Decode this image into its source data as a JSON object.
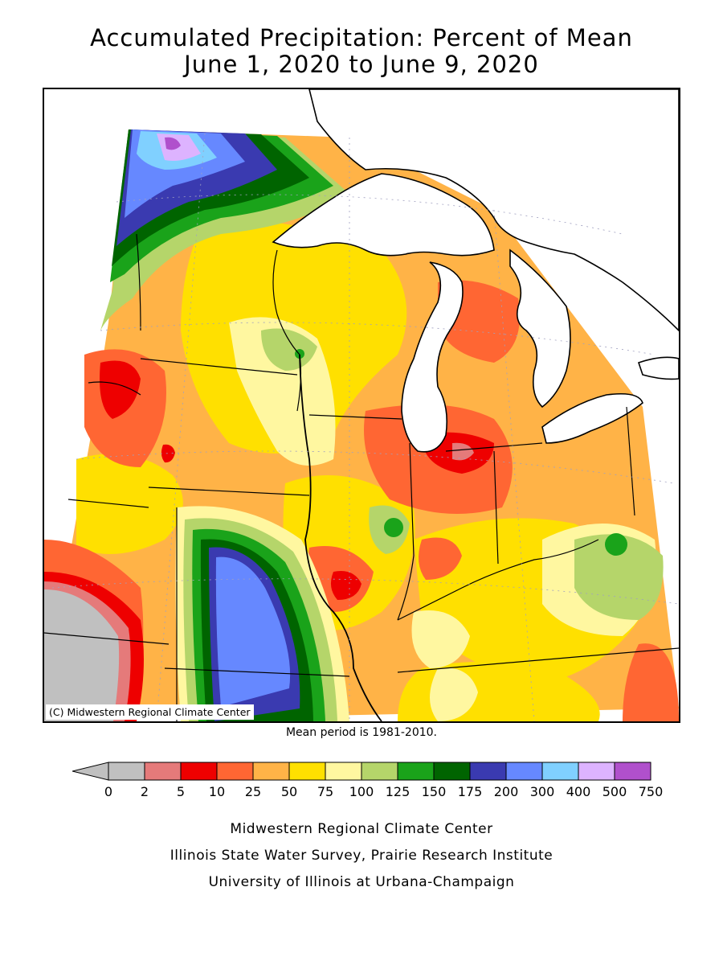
{
  "title": {
    "line1": "Accumulated Precipitation: Percent of Mean",
    "line2": "June 1, 2020 to June 9, 2020"
  },
  "map": {
    "credit": "(C) Midwestern Regional Climate Center",
    "mean_note": "Mean period is 1981-2010."
  },
  "legend": {
    "ticks": [
      "0",
      "2",
      "5",
      "10",
      "25",
      "50",
      "75",
      "100",
      "125",
      "150",
      "175",
      "200",
      "300",
      "400",
      "500",
      "750"
    ],
    "colors": [
      "#c0c0c0",
      "#e57a7a",
      "#ee0000",
      "#ff6633",
      "#ffb347",
      "#ffe000",
      "#fff7a0",
      "#b5d56a",
      "#1aa31a",
      "#006400",
      "#3a3ab0",
      "#6688ff",
      "#80d0ff",
      "#ddb3ff",
      "#b050cc"
    ]
  },
  "footer": {
    "line1": "Midwestern Regional Climate Center",
    "line2": "Illinois State Water Survey, Prairie Research Institute",
    "line3": "University of Illinois at Urbana-Champaign"
  }
}
